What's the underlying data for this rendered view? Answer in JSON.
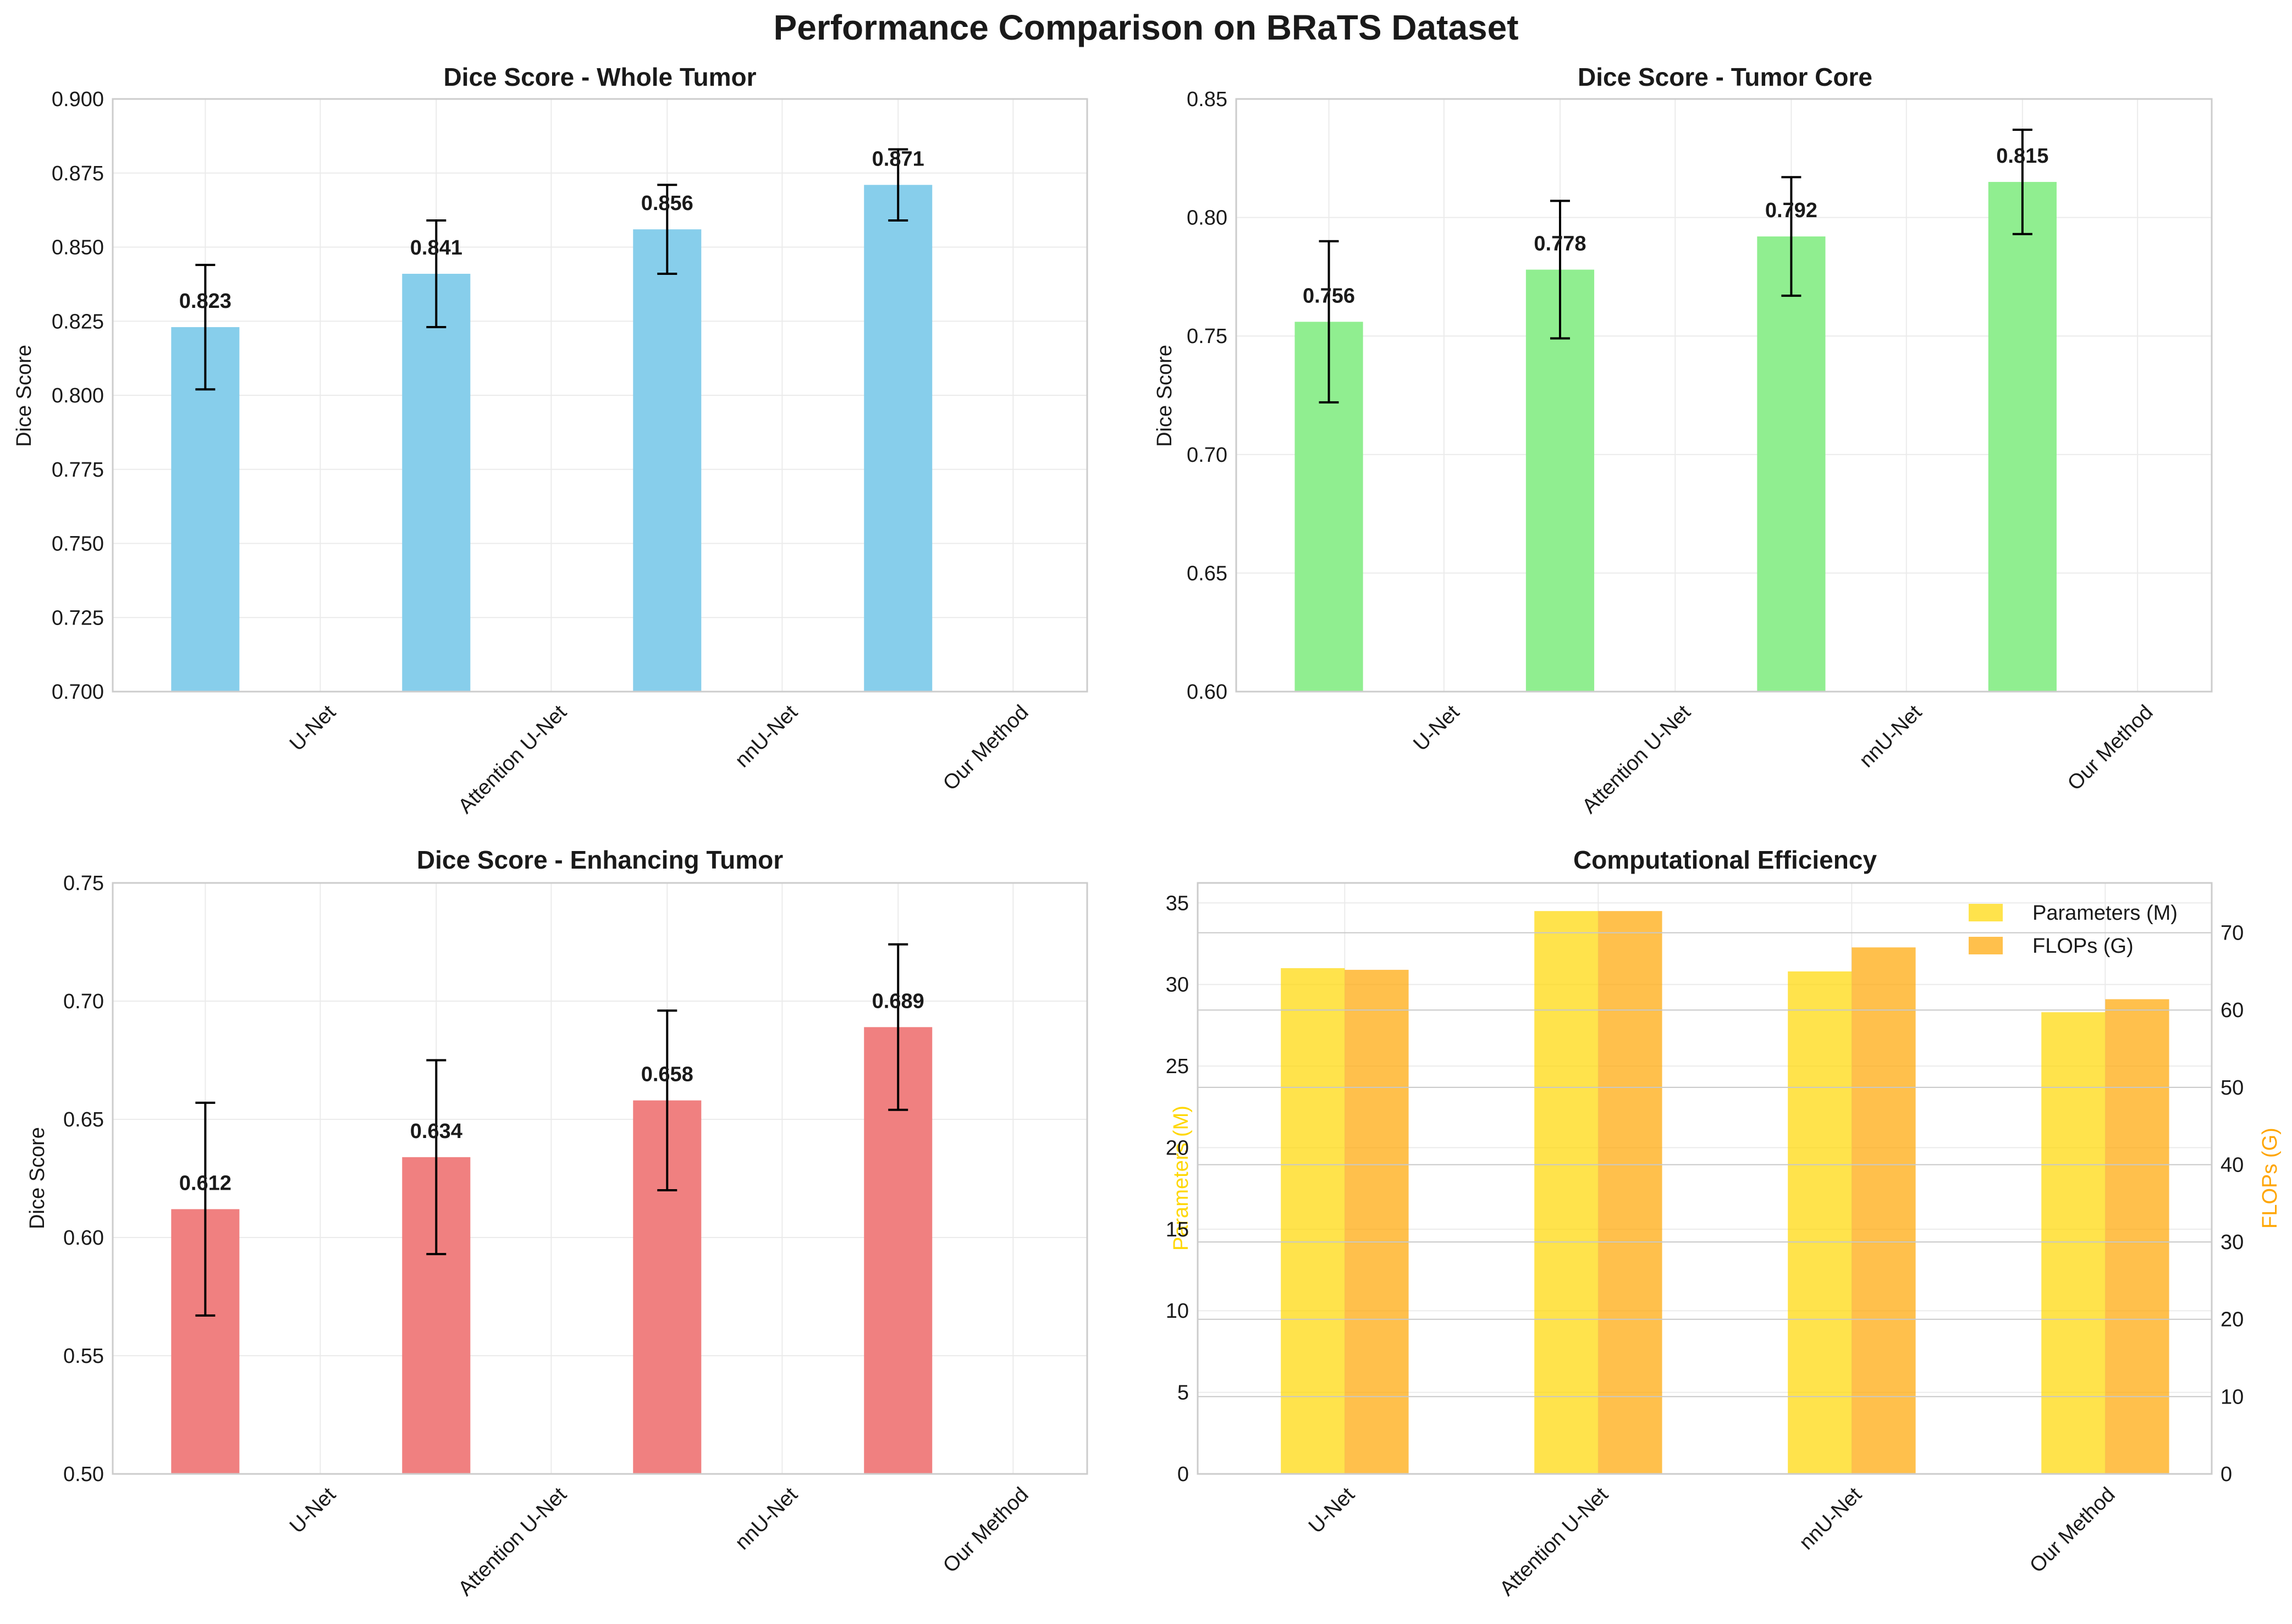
{
  "figure": {
    "title": "Performance Comparison on BRaTS Dataset"
  },
  "colors": {
    "whole_tumor": "#87ceeb",
    "tumor_core": "#90ee90",
    "enhancing_tumor": "#f08080",
    "parameters": "#ffd700",
    "flops": "#ffa500",
    "grid": "#ebebeb",
    "spine": "#cccccc"
  },
  "chart_data": [
    {
      "id": "wt",
      "type": "bar",
      "title": "Dice Score - Whole Tumor",
      "ylabel": "Dice Score",
      "categories": [
        "U-Net",
        "Attention U-Net",
        "nnU-Net",
        "Our Method"
      ],
      "values": [
        0.823,
        0.841,
        0.856,
        0.871
      ],
      "value_labels": [
        "0.823",
        "0.841",
        "0.856",
        "0.871"
      ],
      "errors": [
        0.021,
        0.018,
        0.015,
        0.012
      ],
      "ylim": [
        0.7,
        0.9
      ],
      "yticks": [
        0.7,
        0.725,
        0.75,
        0.775,
        0.8,
        0.825,
        0.85,
        0.875,
        0.9
      ],
      "ytick_labels": [
        "0.700",
        "0.725",
        "0.750",
        "0.775",
        "0.800",
        "0.825",
        "0.850",
        "0.875",
        "0.900"
      ],
      "grid": true,
      "color_key": "whole_tumor"
    },
    {
      "id": "tc",
      "type": "bar",
      "title": "Dice Score - Tumor Core",
      "ylabel": "Dice Score",
      "categories": [
        "U-Net",
        "Attention U-Net",
        "nnU-Net",
        "Our Method"
      ],
      "values": [
        0.756,
        0.778,
        0.792,
        0.815
      ],
      "value_labels": [
        "0.756",
        "0.778",
        "0.792",
        "0.815"
      ],
      "errors": [
        0.034,
        0.029,
        0.025,
        0.022
      ],
      "ylim": [
        0.6,
        0.85
      ],
      "yticks": [
        0.6,
        0.65,
        0.7,
        0.75,
        0.8,
        0.85
      ],
      "ytick_labels": [
        "0.60",
        "0.65",
        "0.70",
        "0.75",
        "0.80",
        "0.85"
      ],
      "grid": true,
      "color_key": "tumor_core"
    },
    {
      "id": "et",
      "type": "bar",
      "title": "Dice Score - Enhancing Tumor",
      "ylabel": "Dice Score",
      "categories": [
        "U-Net",
        "Attention U-Net",
        "nnU-Net",
        "Our Method"
      ],
      "values": [
        0.612,
        0.634,
        0.658,
        0.689
      ],
      "value_labels": [
        "0.612",
        "0.634",
        "0.658",
        "0.689"
      ],
      "errors": [
        0.045,
        0.041,
        0.038,
        0.035
      ],
      "ylim": [
        0.5,
        0.75
      ],
      "yticks": [
        0.5,
        0.55,
        0.6,
        0.65,
        0.7,
        0.75
      ],
      "ytick_labels": [
        "0.50",
        "0.55",
        "0.60",
        "0.65",
        "0.70",
        "0.75"
      ],
      "grid": true,
      "color_key": "enhancing_tumor"
    },
    {
      "id": "eff",
      "type": "bar",
      "title": "Computational Efficiency",
      "categories": [
        "U-Net",
        "Attention U-Net",
        "nnU-Net",
        "Our Method"
      ],
      "series": [
        {
          "name": "Parameters (M)",
          "axis": "left",
          "values": [
            31.0,
            34.5,
            30.8,
            28.3
          ],
          "color_key": "parameters"
        },
        {
          "name": "FLOPs (G)",
          "axis": "right",
          "values": [
            65.2,
            72.8,
            68.1,
            61.4
          ],
          "color_key": "flops"
        }
      ],
      "ylabel_left": "Parameters (M)",
      "ylabel_right": "FLOPs (G)",
      "ylim_left": [
        0,
        36.225
      ],
      "ylim_right": [
        0,
        76.44
      ],
      "yticks_left": [
        0,
        5,
        10,
        15,
        20,
        25,
        30,
        35
      ],
      "yticks_right": [
        0,
        10,
        20,
        30,
        40,
        50,
        60,
        70
      ],
      "grid": true,
      "legend": "top-right"
    }
  ]
}
